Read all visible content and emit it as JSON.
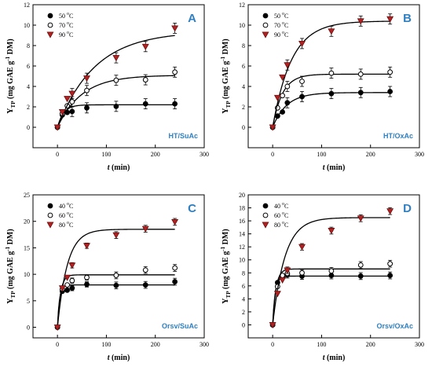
{
  "chart_data": [
    {
      "type": "scatter",
      "panel_letter": "A",
      "panel_name": "HT/SuAc",
      "xlabel": "t (min)",
      "ylabel": "Y_TP (mg GAE g^-1 DM)",
      "xlim": [
        -50,
        300
      ],
      "ylim": [
        -2,
        12
      ],
      "xticks": [
        "0",
        "100",
        "200",
        "300"
      ],
      "yticks": [
        "0",
        "2",
        "4",
        "6",
        "8",
        "10",
        "12"
      ],
      "legend_position": "top-left",
      "series": [
        {
          "name": "50 °C",
          "marker": "filled-circle",
          "x": [
            0,
            10,
            20,
            30,
            60,
            120,
            180,
            240
          ],
          "y": [
            0,
            1.2,
            1.45,
            1.55,
            1.9,
            2.05,
            2.3,
            2.3
          ],
          "fit_max": 2.2,
          "fit_k": 0.08
        },
        {
          "name": "70 °C",
          "marker": "open-circle",
          "x": [
            0,
            10,
            20,
            30,
            60,
            120,
            180,
            240
          ],
          "y": [
            0,
            1.35,
            2.1,
            2.5,
            3.6,
            4.6,
            4.65,
            5.4
          ],
          "fit_max": 5.1,
          "fit_k": 0.02
        },
        {
          "name": "90 °C",
          "marker": "triangle-down",
          "x": [
            0,
            10,
            20,
            30,
            60,
            120,
            180,
            240
          ],
          "y": [
            0,
            1.5,
            2.8,
            3.3,
            4.8,
            6.8,
            7.9,
            9.7
          ],
          "fit_max": 9.4,
          "fit_k": 0.013
        }
      ]
    },
    {
      "type": "scatter",
      "panel_letter": "B",
      "panel_name": "HT/OxAc",
      "xlabel": "t (min)",
      "ylabel": "Y_TP (mg GAE g^-1 DM)",
      "xlim": [
        -50,
        300
      ],
      "ylim": [
        -2,
        12
      ],
      "xticks": [
        "0",
        "100",
        "200",
        "300"
      ],
      "yticks": [
        "0",
        "2",
        "4",
        "6",
        "8",
        "10",
        "12"
      ],
      "legend_position": "top-left",
      "series": [
        {
          "name": "50 °C",
          "marker": "filled-circle",
          "x": [
            0,
            10,
            20,
            30,
            60,
            120,
            180,
            240
          ],
          "y": [
            0,
            1.1,
            1.5,
            2.4,
            3.0,
            3.3,
            3.4,
            3.5
          ],
          "fit_max": 3.4,
          "fit_k": 0.035
        },
        {
          "name": "70 °C",
          "marker": "open-circle",
          "x": [
            0,
            10,
            20,
            30,
            60,
            120,
            180,
            240
          ],
          "y": [
            0,
            1.9,
            3.1,
            4.0,
            4.5,
            5.3,
            5.2,
            5.4
          ],
          "fit_max": 5.2,
          "fit_k": 0.05
        },
        {
          "name": "90 °C",
          "marker": "triangle-down",
          "x": [
            0,
            10,
            20,
            30,
            60,
            120,
            180,
            240
          ],
          "y": [
            0,
            2.9,
            4.9,
            6.1,
            8.2,
            9.4,
            10.4,
            10.6
          ],
          "fit_max": 10.4,
          "fit_k": 0.026
        }
      ]
    },
    {
      "type": "scatter",
      "panel_letter": "C",
      "panel_name": "Orsv/SuAc",
      "xlabel": "t (min)",
      "ylabel": "Y_TP (mg GAE g^-1 DM)",
      "xlim": [
        -50,
        300
      ],
      "ylim": [
        -2,
        25
      ],
      "xticks": [
        "0",
        "100",
        "200",
        "300"
      ],
      "yticks": [
        "0",
        "5",
        "10",
        "15",
        "20",
        "25"
      ],
      "legend_position": "top-left",
      "series": [
        {
          "name": "40 °C",
          "marker": "filled-circle",
          "x": [
            0,
            10,
            20,
            30,
            60,
            120,
            180,
            240
          ],
          "y": [
            0,
            6.8,
            7.0,
            7.4,
            8.1,
            7.9,
            8.0,
            8.6
          ],
          "fit_max": 8.0,
          "fit_k": 0.25
        },
        {
          "name": "60 °C",
          "marker": "open-circle",
          "x": [
            0,
            10,
            20,
            30,
            60,
            120,
            180,
            240
          ],
          "y": [
            0,
            7.2,
            8.0,
            8.8,
            9.4,
            9.8,
            10.8,
            11.2
          ],
          "fit_max": 9.9,
          "fit_k": 0.16
        },
        {
          "name": "80 °C",
          "marker": "triangle-down",
          "x": [
            0,
            10,
            20,
            30,
            60,
            120,
            180,
            240
          ],
          "y": [
            0,
            7.4,
            9.4,
            11.7,
            15.4,
            17.4,
            18.6,
            19.9
          ],
          "fit_max": 18.5,
          "fit_k": 0.05
        }
      ]
    },
    {
      "type": "scatter",
      "panel_letter": "D",
      "panel_name": "Orsv/OxAc",
      "xlabel": "t (min)",
      "ylabel": "Y_TP (mg GAE g^-1 DM)",
      "xlim": [
        -50,
        300
      ],
      "ylim": [
        -2,
        20
      ],
      "xticks": [
        "0",
        "100",
        "200",
        "300"
      ],
      "yticks": [
        "0",
        "2",
        "4",
        "6",
        "8",
        "10",
        "12",
        "14",
        "16",
        "18",
        "20"
      ],
      "legend_position": "top-left",
      "series": [
        {
          "name": "40 °C",
          "marker": "filled-circle",
          "x": [
            0,
            10,
            20,
            30,
            60,
            120,
            180,
            240
          ],
          "y": [
            0,
            6.5,
            7.4,
            7.7,
            7.5,
            7.6,
            7.5,
            7.6
          ],
          "fit_max": 7.5,
          "fit_k": 0.2
        },
        {
          "name": "60 °C",
          "marker": "open-circle",
          "x": [
            0,
            10,
            20,
            30,
            60,
            120,
            180,
            240
          ],
          "y": [
            0,
            5.9,
            7.6,
            7.9,
            8.0,
            8.3,
            9.2,
            9.4
          ],
          "fit_max": 8.6,
          "fit_k": 0.15
        },
        {
          "name": "80 °C",
          "marker": "triangle-down",
          "x": [
            0,
            10,
            20,
            30,
            60,
            120,
            180,
            240
          ],
          "y": [
            0,
            4.8,
            6.9,
            8.4,
            12.0,
            14.5,
            16.4,
            17.5
          ],
          "fit_max": 16.5,
          "fit_k": 0.04
        }
      ]
    }
  ]
}
